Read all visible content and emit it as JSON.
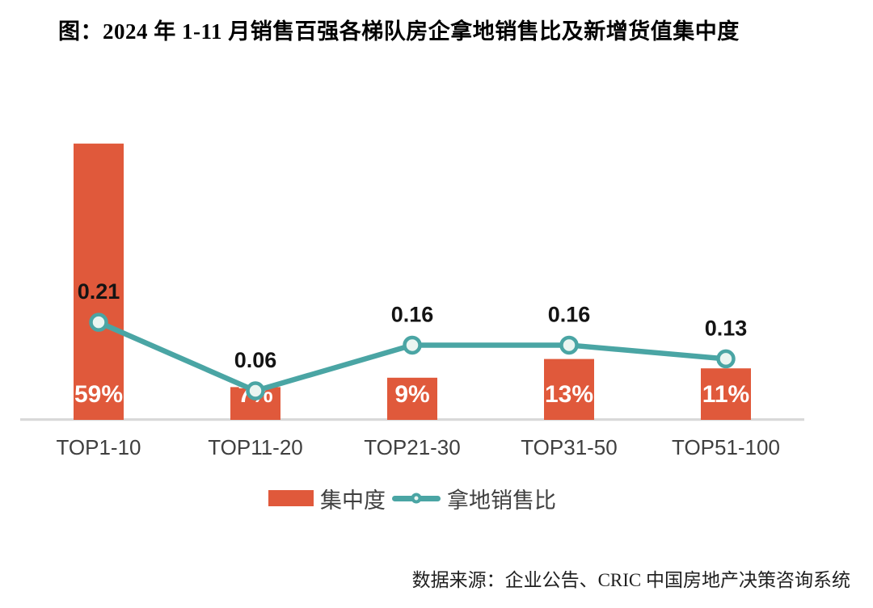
{
  "source": "数据来源：企业公告、CRIC 中国房地产决策咨询系统",
  "colors": {
    "bar": "#E0593B",
    "line": "#4AA5A4",
    "marker_fill": "#EAF5F1",
    "bar_label": "#FFFFFF",
    "value_label": "#141414",
    "axis_line": "#D9D9D9",
    "axis_label": "#3F3F3F",
    "title": "#000000",
    "legend_text": "#3F3F3F",
    "source_text": "#1F1F1F"
  },
  "chart_data": {
    "type": "combo-bar-line",
    "title": "图：2024 年 1-11 月销售百强各梯队房企拿地销售比及新增货值集中度",
    "categories": [
      "TOP1-10",
      "TOP11-20",
      "TOP21-30",
      "TOP31-50",
      "TOP51-100"
    ],
    "series": [
      {
        "name": "集中度",
        "type": "bar",
        "unit": "%",
        "values": [
          59,
          7,
          9,
          13,
          11
        ],
        "labels": [
          "59%",
          "7%",
          "9%",
          "13%",
          "11%"
        ]
      },
      {
        "name": "拿地销售比",
        "type": "line",
        "values": [
          0.21,
          0.06,
          0.16,
          0.16,
          0.13
        ],
        "labels": [
          "0.21",
          "0.06",
          "0.16",
          "0.16",
          "0.13"
        ]
      }
    ],
    "xlabel": "",
    "ylabel": "",
    "bar_axis_range": [
      0,
      100
    ],
    "line_axis_range": [
      0,
      0.25
    ],
    "grid": false,
    "data_labels": true,
    "legend_position": "bottom"
  }
}
